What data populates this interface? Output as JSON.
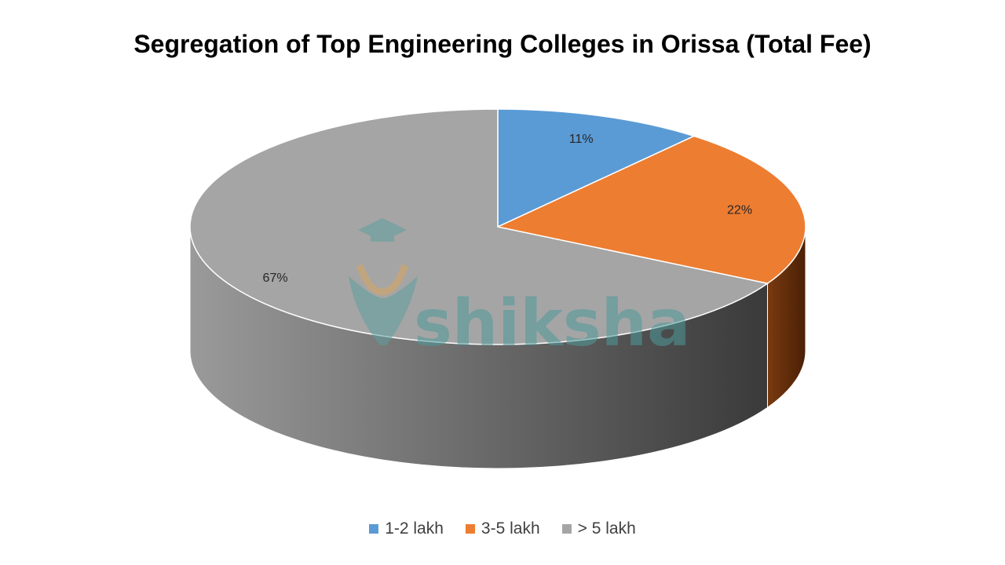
{
  "chart_data": {
    "type": "pie",
    "title": "Segregation of Top Engineering Colleges in Orissa (Total Fee)",
    "categories": [
      "1-2 lakh",
      "3-5 lakh",
      "> 5 lakh"
    ],
    "values": [
      11,
      22,
      67
    ],
    "labels": [
      "11%",
      "22%",
      "67%"
    ],
    "colors": [
      "#5b9bd5",
      "#ed7d31",
      "#a5a5a5"
    ],
    "legend_position": "bottom",
    "style": "3d"
  },
  "watermark": {
    "text": "shiksha",
    "icon": "graduation-cap-icon"
  }
}
